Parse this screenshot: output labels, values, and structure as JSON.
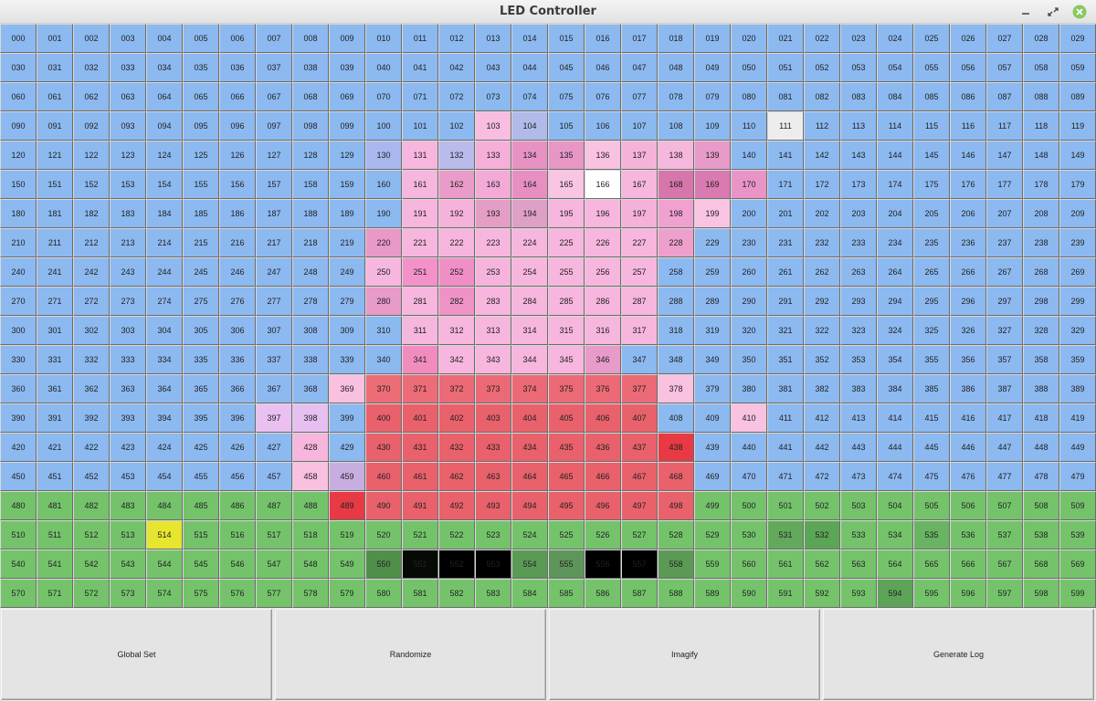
{
  "window": {
    "title": "LED Controller",
    "controls": [
      {
        "name": "minimize-icon"
      },
      {
        "name": "restore-icon"
      },
      {
        "name": "close-icon",
        "color": "#87c95f"
      }
    ]
  },
  "grid": {
    "rows": 20,
    "cols": 30,
    "default_colors": {
      "blue": "#8cb9f0",
      "green": "#74c36b"
    },
    "overrides": {
      "111": "#ededed",
      "103": "#f8bde0",
      "104": "#b1bbea",
      "130": "#a8b8ee",
      "131": "#f7b6dd",
      "132": "#b9bbea",
      "133": "#f5afd9",
      "134": "#e892c4",
      "135": "#e896c6",
      "136": "#f9c2e1",
      "137": "#f6b3da",
      "138": "#f6b7dc",
      "139": "#e89ac8",
      "161": "#f7b6dd",
      "162": "#e99cc9",
      "163": "#f3aad6",
      "164": "#e88fc2",
      "165": "#f9c5e2",
      "166": "#ffffff",
      "167": "#f7b6dd",
      "168": "#d776aa",
      "169": "#d97bb0",
      "170": "#e894c6",
      "191": "#f7b6dd",
      "192": "#f5b2db",
      "193": "#e49ec6",
      "194": "#dea0c6",
      "195": "#f7b6dd",
      "196": "#f7b6dd",
      "197": "#f5b1da",
      "198": "#f0a1cf",
      "199": "#f9c4e2",
      "220": "#e899c7",
      "221": "#f7b6dd",
      "222": "#f6b5dc",
      "223": "#f7b6dd",
      "224": "#f7b6dd",
      "225": "#f7b6dd",
      "226": "#f7b6dd",
      "227": "#f7b6dd",
      "228": "#ef9fcc",
      "250": "#f7b6dd",
      "251": "#f491c8",
      "252": "#f08fc6",
      "253": "#f6b4dc",
      "254": "#f7b6dd",
      "255": "#f7b6dd",
      "256": "#f7b6dd",
      "257": "#f7b6dd",
      "280": "#e89ac8",
      "281": "#f7b6dd",
      "282": "#ef93c6",
      "283": "#f7b6dd",
      "284": "#f7b6dd",
      "285": "#f7b6dd",
      "286": "#f7b6dd",
      "287": "#f7b6dd",
      "311": "#f7b6dd",
      "312": "#f7b6dd",
      "313": "#f7b6dd",
      "314": "#f7b6dd",
      "315": "#f7b6dd",
      "316": "#f7b6dd",
      "317": "#f7b6dd",
      "341": "#f28cbf",
      "342": "#f7b6dd",
      "343": "#f7b6dd",
      "344": "#f7b6dd",
      "345": "#f7b6dd",
      "346": "#e89ac8",
      "369": "#f9c0e0",
      "370": "#ed6d76",
      "371": "#ec6c77",
      "372": "#eb6a75",
      "373": "#eb6a75",
      "374": "#eb6a75",
      "375": "#eb6a75",
      "376": "#eb6a75",
      "377": "#eb6a75",
      "378": "#f9c2e1",
      "397": "#e9c0f0",
      "398": "#e7c0f2",
      "400": "#e9616b",
      "401": "#e9616b",
      "402": "#e9616b",
      "403": "#e9616b",
      "404": "#e9616b",
      "405": "#e9616b",
      "406": "#e9616b",
      "407": "#e9616b",
      "410": "#f9c2e1",
      "428": "#f7b6dd",
      "430": "#e9616b",
      "431": "#e9616b",
      "432": "#e9616b",
      "433": "#e9616b",
      "434": "#e9616b",
      "435": "#e9616b",
      "436": "#e9616b",
      "437": "#e9616b",
      "438": "#e73a44",
      "458": "#f9c0e0",
      "459": "#c8aee0",
      "460": "#e9616b",
      "461": "#e9616b",
      "462": "#e9616b",
      "463": "#e9616b",
      "464": "#e9616b",
      "465": "#e9616b",
      "466": "#e9616b",
      "467": "#e9616b",
      "468": "#e9616b",
      "489": "#e73a44",
      "490": "#e9616b",
      "491": "#e9616b",
      "492": "#e9616b",
      "493": "#e9616b",
      "494": "#e9616b",
      "495": "#e9616b",
      "496": "#e9616b",
      "497": "#e9616b",
      "498": "#e9616b",
      "514": "#e6e62e",
      "531": "#62a95c",
      "532": "#5ba656",
      "535": "#68b462",
      "550": "#4f8f4a",
      "551": "#050a05",
      "552": "#000000",
      "553": "#000000",
      "554": "#5a9a55",
      "555": "#5e955a",
      "556": "#000000",
      "557": "#000000",
      "558": "#5a9a55",
      "594": "#5ea458"
    }
  },
  "actions": [
    {
      "label": "Global Set"
    },
    {
      "label": "Randomize"
    },
    {
      "label": "Imagify"
    },
    {
      "label": "Generate Log"
    }
  ]
}
